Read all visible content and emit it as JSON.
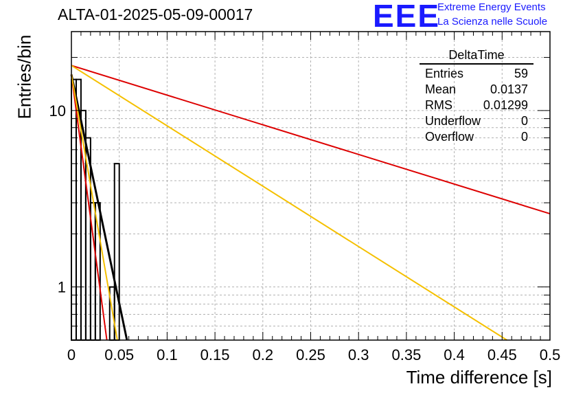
{
  "title": "ALTA-01-2025-05-09-00017",
  "logo": {
    "letters": "EEE",
    "line1": "Extreme Energy Events",
    "line2": "La Scienza nelle Scuole"
  },
  "stats": {
    "name": "DeltaTime",
    "rows": [
      {
        "label": "Entries",
        "value": "59"
      },
      {
        "label": "Mean",
        "value": "0.0137"
      },
      {
        "label": "RMS",
        "value": "0.01299"
      },
      {
        "label": "Underflow",
        "value": "0"
      },
      {
        "label": "Overflow",
        "value": "0"
      }
    ]
  },
  "colors": {
    "histogram": "#000000",
    "fit_black": "#000000",
    "fit_red": "#dd0000",
    "fit_yellow": "#f5c000",
    "grid": "#b0b0b0"
  },
  "chart_data": {
    "type": "histogram",
    "xlabel": "Time difference [s]",
    "ylabel": "Entries/bin",
    "xlim": [
      0,
      0.5
    ],
    "ylim": [
      0.5,
      28
    ],
    "yscale": "log",
    "grid": true,
    "xticks": [
      "0",
      "0.05",
      "0.1",
      "0.15",
      "0.2",
      "0.25",
      "0.3",
      "0.35",
      "0.4",
      "0.45",
      "0.5"
    ],
    "yticks": [
      "1",
      "10"
    ],
    "bin_width": 0.005,
    "bins": [
      {
        "x0": 0.0,
        "x1": 0.005,
        "count": 15
      },
      {
        "x0": 0.005,
        "x1": 0.01,
        "count": 15
      },
      {
        "x0": 0.01,
        "x1": 0.015,
        "count": 10
      },
      {
        "x0": 0.015,
        "x1": 0.02,
        "count": 7
      },
      {
        "x0": 0.02,
        "x1": 0.025,
        "count": 3
      },
      {
        "x0": 0.025,
        "x1": 0.03,
        "count": 3
      },
      {
        "x0": 0.03,
        "x1": 0.035,
        "count": 0
      },
      {
        "x0": 0.035,
        "x1": 0.04,
        "count": 0
      },
      {
        "x0": 0.04,
        "x1": 0.045,
        "count": 1
      },
      {
        "x0": 0.045,
        "x1": 0.05,
        "count": 5
      }
    ],
    "series": [
      {
        "color": "black",
        "x": [
          0.0,
          0.058
        ],
        "y": [
          16,
          0.5
        ]
      },
      {
        "color": "red",
        "x": [
          0.0,
          0.037
        ],
        "y": [
          16,
          0.5
        ]
      },
      {
        "color": "yellow",
        "x": [
          0.0,
          0.048
        ],
        "y": [
          16,
          0.5
        ]
      },
      {
        "color": "red",
        "x": [
          0.0,
          0.5
        ],
        "y": [
          18,
          2.6
        ]
      },
      {
        "color": "yellow",
        "x": [
          0.0,
          0.455
        ],
        "y": [
          18,
          0.5
        ]
      }
    ]
  }
}
